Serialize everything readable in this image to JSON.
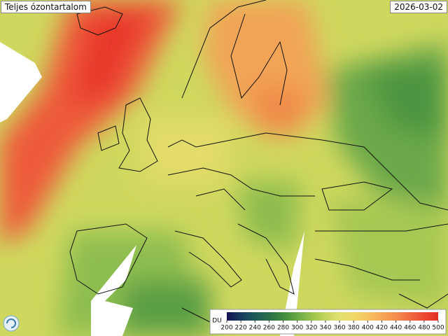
{
  "header": {
    "title": "Teljes ózontartalom",
    "date": "2026-03-02"
  },
  "colorbar": {
    "unit": "DU",
    "lim": [
      200,
      500
    ],
    "ticks": [
      200,
      220,
      240,
      260,
      280,
      300,
      320,
      340,
      360,
      380,
      400,
      420,
      440,
      460,
      480,
      500
    ],
    "colors": [
      "#141452",
      "#173a5e",
      "#1d5a5a",
      "#2a6e48",
      "#3f8a3c",
      "#68a844",
      "#98c24e",
      "#c2d45c",
      "#e2e070",
      "#f0d868",
      "#f6c462",
      "#f6a858",
      "#f48c4c",
      "#f06a40",
      "#ec4a32",
      "#e03024"
    ]
  }
}
